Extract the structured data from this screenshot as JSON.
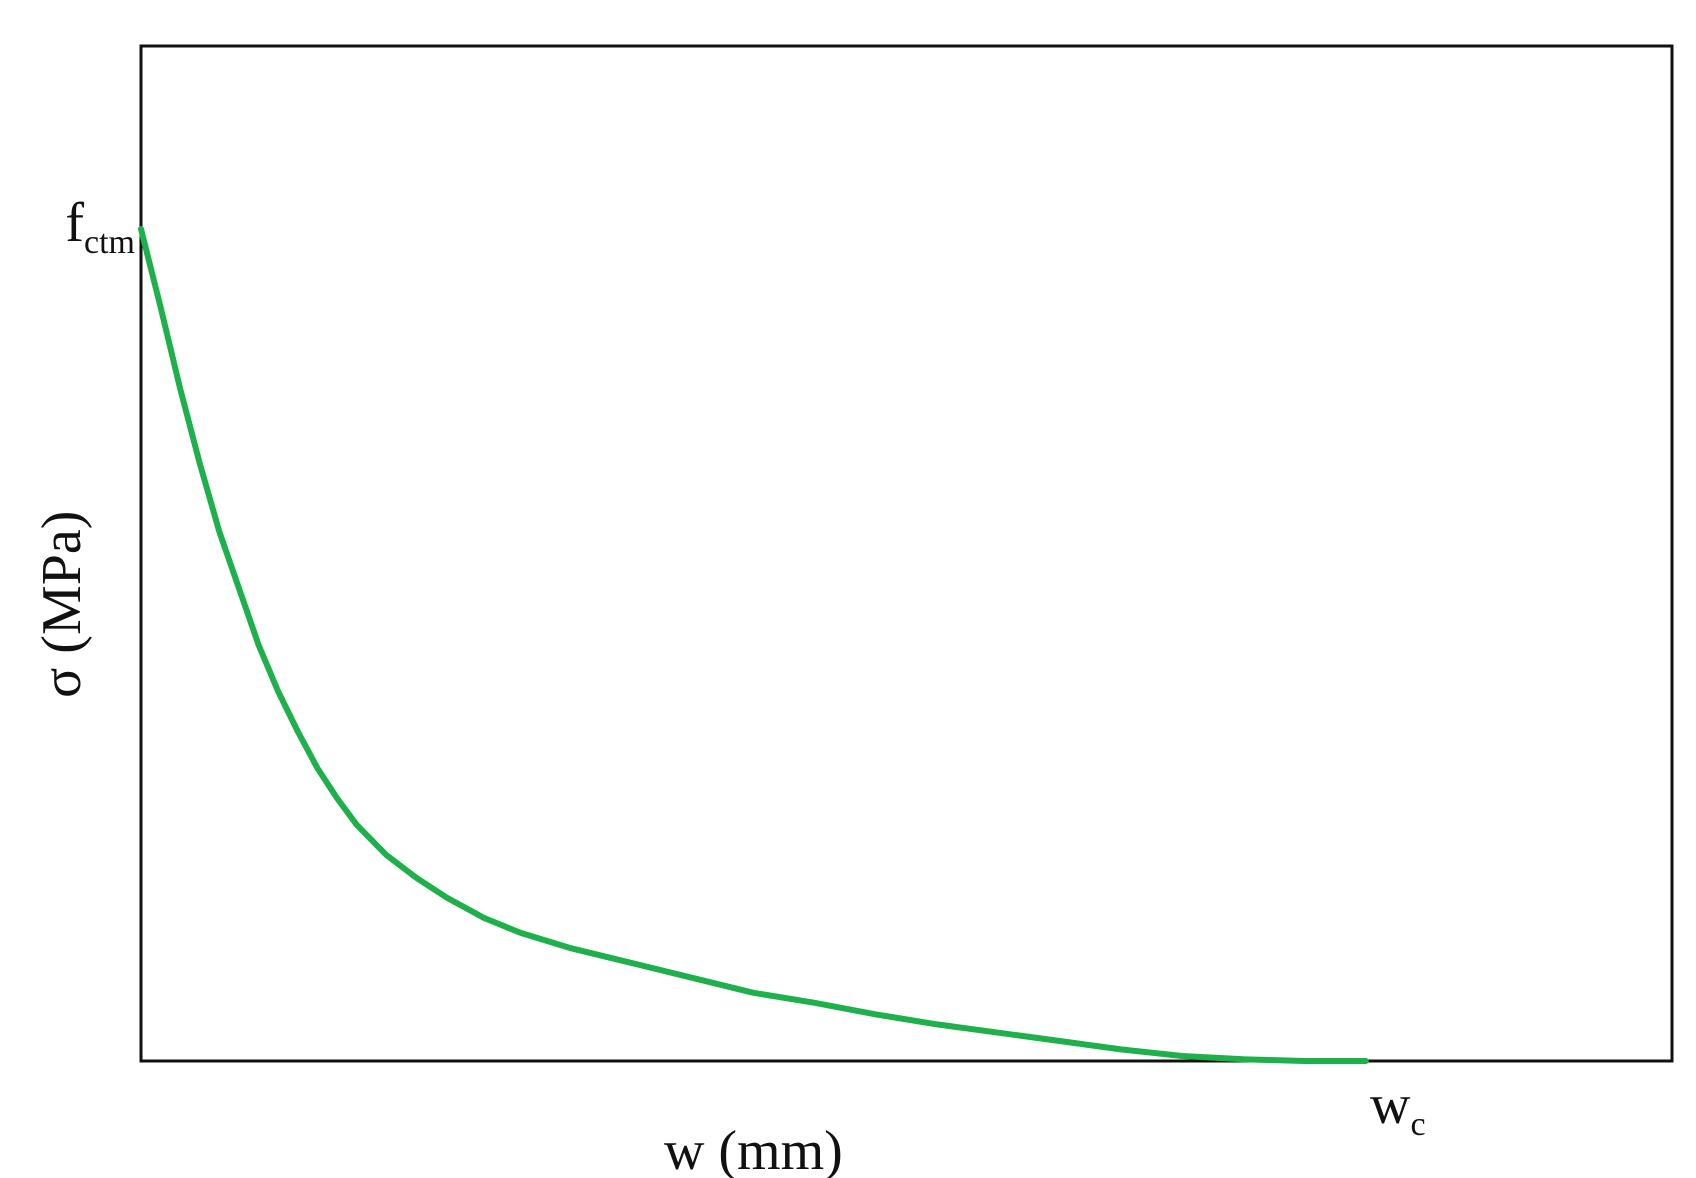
{
  "chart_data": {
    "type": "line",
    "title": "",
    "xlabel": "w (mm)",
    "ylabel": "σ (MPa)",
    "xlim": [
      0,
      1.25
    ],
    "ylim": [
      0,
      1.22
    ],
    "grid": false,
    "legend": "none",
    "y_tick": {
      "main": "f",
      "sub": "ctm",
      "value": 1.0
    },
    "x_tick": {
      "main": "w",
      "sub": "c",
      "value": 1.0
    },
    "series": [
      {
        "color": "#1db04b",
        "x": [
          0,
          0.016,
          0.032,
          0.048,
          0.064,
          0.08,
          0.096,
          0.112,
          0.128,
          0.144,
          0.16,
          0.176,
          0.2,
          0.225,
          0.25,
          0.28,
          0.31,
          0.35,
          0.4,
          0.45,
          0.5,
          0.55,
          0.6,
          0.65,
          0.7,
          0.75,
          0.8,
          0.85,
          0.9,
          0.95,
          0.97,
          0.99,
          1.0
        ],
        "y": [
          1.0,
          0.906,
          0.808,
          0.718,
          0.636,
          0.568,
          0.5,
          0.444,
          0.396,
          0.352,
          0.316,
          0.284,
          0.248,
          0.22,
          0.196,
          0.172,
          0.154,
          0.136,
          0.118,
          0.1,
          0.082,
          0.07,
          0.056,
          0.044,
          0.034,
          0.024,
          0.014,
          0.006,
          0.002,
          0.0,
          0.0,
          0.0,
          0.0
        ]
      }
    ],
    "axis_color": "#111111"
  }
}
